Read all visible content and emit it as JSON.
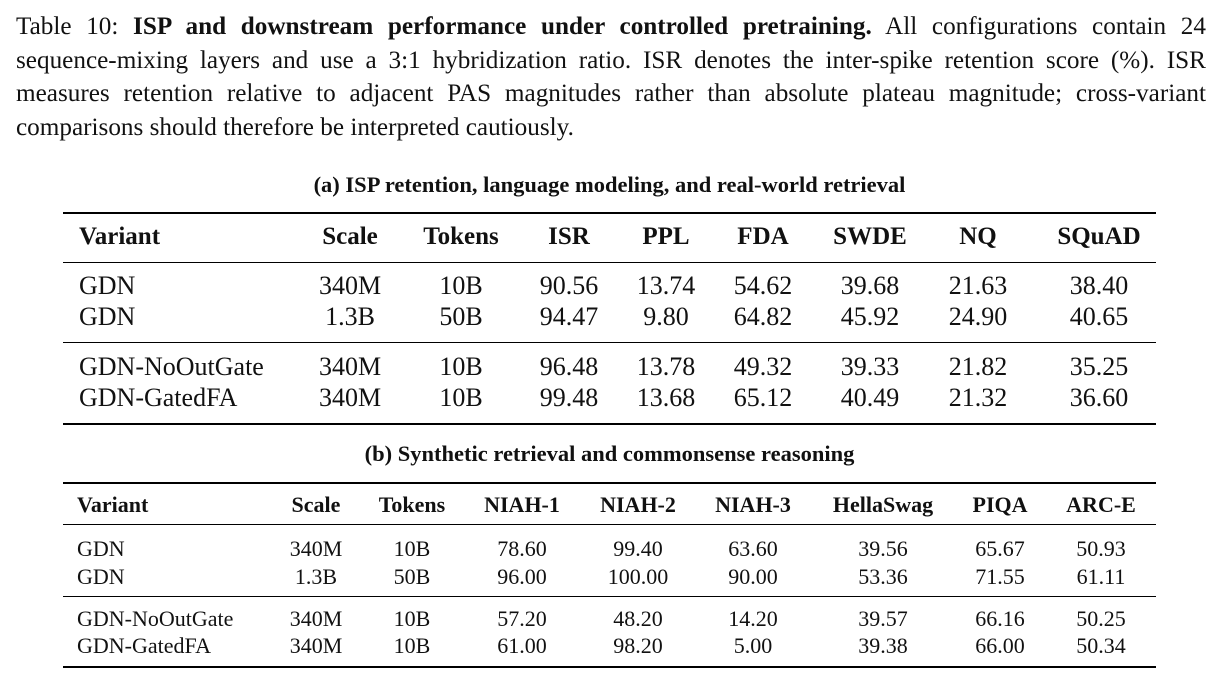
{
  "caption": {
    "label": "Table 10:",
    "bold": "ISP and downstream performance under controlled pretraining.",
    "text": "All configurations contain 24 sequence-mixing layers and use a 3:1 hybridization ratio. ISR denotes the inter-spike retention score (%). ISR measures retention relative to adjacent PAS magnitudes rather than absolute plateau magnitude; cross-variant comparisons should therefore be interpreted cautiously."
  },
  "table_a": {
    "title": "(a) ISP retention, language modeling, and real-world retrieval",
    "headers": [
      "Variant",
      "Scale",
      "Tokens",
      "ISR",
      "PPL",
      "FDA",
      "SWDE",
      "NQ",
      "SQuAD"
    ],
    "groups": [
      [
        [
          "GDN",
          "340M",
          "10B",
          "90.56",
          "13.74",
          "54.62",
          "39.68",
          "21.63",
          "38.40"
        ],
        [
          "GDN",
          "1.3B",
          "50B",
          "94.47",
          "9.80",
          "64.82",
          "45.92",
          "24.90",
          "40.65"
        ]
      ],
      [
        [
          "GDN-NoOutGate",
          "340M",
          "10B",
          "96.48",
          "13.78",
          "49.32",
          "39.33",
          "21.82",
          "35.25"
        ],
        [
          "GDN-GatedFA",
          "340M",
          "10B",
          "99.48",
          "13.68",
          "65.12",
          "40.49",
          "21.32",
          "36.60"
        ]
      ]
    ]
  },
  "table_b": {
    "title": "(b) Synthetic retrieval and commonsense reasoning",
    "headers": [
      "Variant",
      "Scale",
      "Tokens",
      "NIAH-1",
      "NIAH-2",
      "NIAH-3",
      "HellaSwag",
      "PIQA",
      "ARC-E"
    ],
    "groups": [
      [
        [
          "GDN",
          "340M",
          "10B",
          "78.60",
          "99.40",
          "63.60",
          "39.56",
          "65.67",
          "50.93"
        ],
        [
          "GDN",
          "1.3B",
          "50B",
          "96.00",
          "100.00",
          "90.00",
          "53.36",
          "71.55",
          "61.11"
        ]
      ],
      [
        [
          "GDN-NoOutGate",
          "340M",
          "10B",
          "57.20",
          "48.20",
          "14.20",
          "39.57",
          "66.16",
          "50.25"
        ],
        [
          "GDN-GatedFA",
          "340M",
          "10B",
          "61.00",
          "98.20",
          "5.00",
          "39.38",
          "66.00",
          "50.34"
        ]
      ]
    ]
  }
}
